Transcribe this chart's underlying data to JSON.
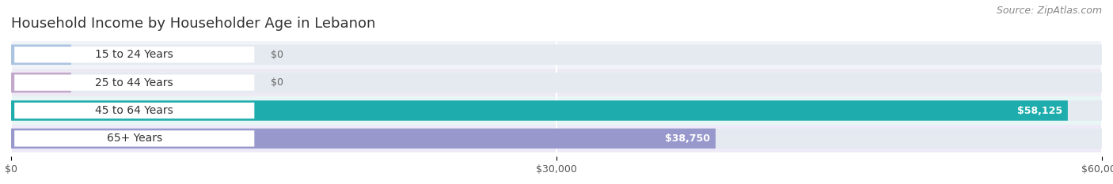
{
  "title": "Household Income by Householder Age in Lebanon",
  "source": "Source: ZipAtlas.com",
  "categories": [
    "15 to 24 Years",
    "25 to 44 Years",
    "45 to 64 Years",
    "65+ Years"
  ],
  "values": [
    0,
    0,
    58125,
    38750
  ],
  "bar_colors": [
    "#aac4e0",
    "#c4a8cc",
    "#1eacac",
    "#9898cc"
  ],
  "bar_bg_color": "#e4eaf0",
  "label_values": [
    "$0",
    "$0",
    "$58,125",
    "$38,750"
  ],
  "xlim": [
    0,
    60000
  ],
  "xticks": [
    0,
    30000,
    60000
  ],
  "xticklabels": [
    "$0",
    "$30,000",
    "$60,000"
  ],
  "title_fontsize": 13,
  "source_fontsize": 9,
  "tick_fontsize": 9,
  "bar_label_fontsize": 9,
  "cat_label_fontsize": 10,
  "background_color": "#ffffff",
  "row_bg_colors": [
    "#f0f4f8",
    "#eeeaf4",
    "#e8f6f6",
    "#eeeaf8"
  ]
}
